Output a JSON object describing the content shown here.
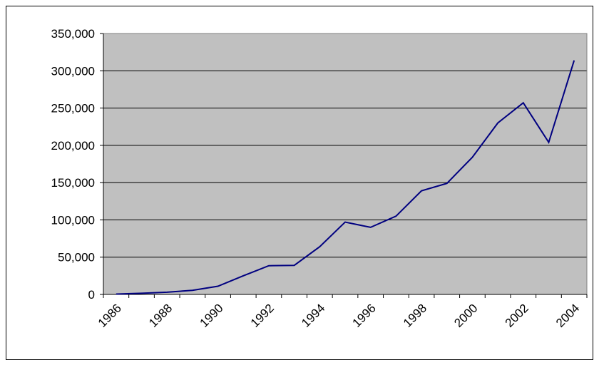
{
  "chart_data": {
    "type": "line",
    "categories": [
      "1986",
      null,
      "1988",
      null,
      "1990",
      null,
      "1992",
      null,
      "1994",
      null,
      "1996",
      null,
      "1998",
      null,
      "2000",
      null,
      "2002",
      null,
      "2004"
    ],
    "series": [
      {
        "color": "#000080",
        "values": [
          500,
          1500,
          3000,
          5500,
          11000,
          25000,
          38500,
          39000,
          64000,
          97000,
          90000,
          105000,
          139000,
          149000,
          184000,
          230000,
          257000,
          204000,
          314000
        ]
      }
    ],
    "ylim": [
      0,
      350000
    ],
    "yticks": [
      0,
      {
        "value": 50000,
        "label": "50,000"
      },
      {
        "value": 100000,
        "label": "100,000"
      },
      {
        "value": 150000,
        "label": "150,000"
      },
      {
        "value": 200000,
        "label": "200,000"
      },
      {
        "value": 250000,
        "label": "250,000"
      },
      {
        "value": 300000,
        "label": "300,000"
      },
      {
        "value": 350000,
        "label": "350,000"
      }
    ],
    "grid": true,
    "plot_background": "#c0c0c0"
  }
}
